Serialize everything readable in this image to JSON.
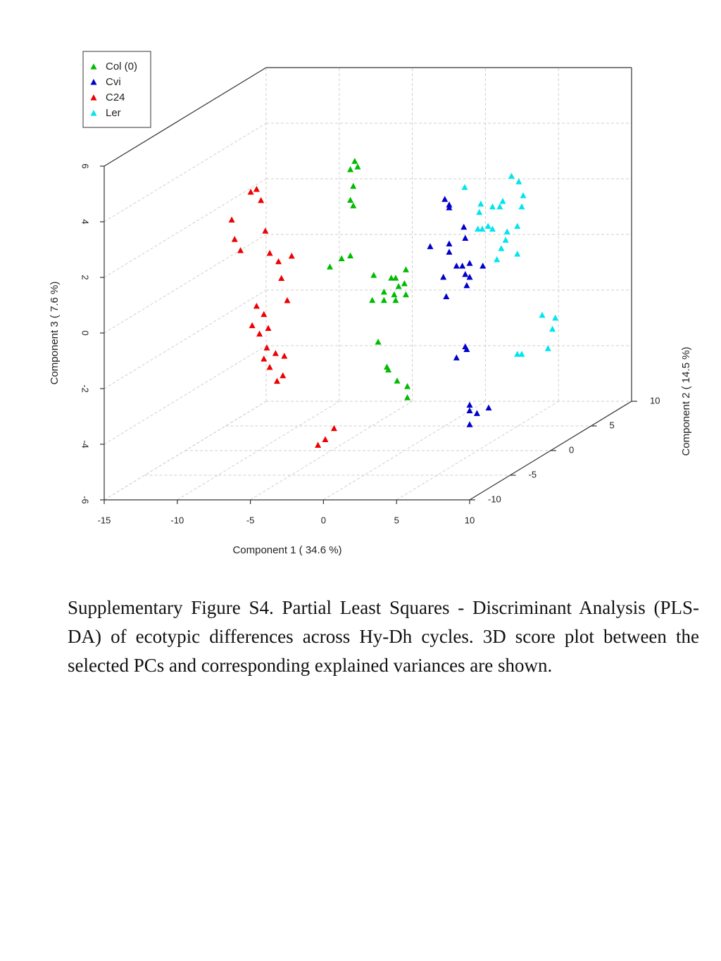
{
  "chart_data": {
    "type": "scatter3d",
    "x_label": "Component 1 ( 34.6 %)",
    "y_label": "Component 2 ( 14.5 %)",
    "z_label": "Component 3 ( 7.6 %)",
    "xlim": [
      -15,
      10
    ],
    "ylim": [
      -10,
      10
    ],
    "zlim": [
      -6,
      6
    ],
    "xticks": [
      -15,
      -10,
      -5,
      0,
      5,
      10
    ],
    "yticks": [
      -10,
      -5,
      0,
      5,
      10
    ],
    "zticks": [
      -6,
      -4,
      -2,
      0,
      2,
      4,
      6
    ],
    "grid": true,
    "legend": "top-left",
    "series": [
      {
        "name": "Col (0)",
        "color": "#00bb00",
        "x": [
          -3.4,
          -3.7,
          -3.2,
          -3.5,
          -3.7,
          -3.5,
          -5.1,
          -4.3,
          -3.7,
          -2.1,
          -0.9,
          -0.6,
          0.1,
          -1.4,
          -0.4,
          0.0,
          -2.2,
          -1.4,
          -0.7,
          -0.6,
          0.1,
          -1.8,
          -1.2,
          -1.1,
          -0.5,
          0.2,
          0.2
        ],
        "y": [
          0,
          0,
          0,
          0,
          0,
          0,
          0,
          0,
          0,
          0,
          0,
          0,
          0,
          0,
          0,
          0,
          0,
          0,
          0,
          0,
          0,
          0,
          0,
          0,
          0,
          0,
          0
        ],
        "z": [
          4.4,
          4.1,
          4.2,
          3.5,
          3.0,
          2.8,
          0.6,
          0.9,
          1.0,
          0.3,
          0.2,
          0.2,
          0.5,
          -0.3,
          -0.1,
          0.0,
          -0.6,
          -0.6,
          -0.4,
          -0.6,
          -0.4,
          -2.1,
          -3.0,
          -3.1,
          -3.5,
          -3.7,
          -4.1
        ]
      },
      {
        "name": "Cvi",
        "color": "#0000cc",
        "x": [
          1.1,
          1.4,
          1.4,
          2.4,
          0.1,
          1.4,
          1.4,
          2.5,
          1.9,
          2.3,
          2.8,
          3.7,
          1.0,
          2.5,
          2.8,
          2.6,
          1.2,
          2.5,
          2.6,
          1.9,
          2.8,
          2.8,
          3.3,
          4.1,
          2.8
        ],
        "y": [
          3,
          3,
          3,
          3,
          3,
          3,
          3,
          3,
          3,
          3,
          3,
          3,
          3,
          3,
          3,
          3,
          3,
          3,
          3,
          3,
          3,
          3,
          3,
          3,
          3
        ],
        "z": [
          2.5,
          2.3,
          2.2,
          1.5,
          0.8,
          0.9,
          0.6,
          1.1,
          0.1,
          0.1,
          0.2,
          0.1,
          -0.3,
          -0.2,
          -0.3,
          -0.6,
          -1.0,
          -2.8,
          -2.9,
          -3.2,
          -4.9,
          -5.1,
          -5.2,
          -5.0,
          -5.6
        ]
      },
      {
        "name": "C24",
        "color": "#ee0000",
        "x": [
          -8.3,
          -7.9,
          -7.6,
          -9.6,
          -9.4,
          -9.0,
          -7.3,
          -7.0,
          -6.4,
          -5.5,
          -6.2,
          -5.8,
          -7.9,
          -7.4,
          -8.2,
          -7.7,
          -7.1,
          -7.2,
          -7.4,
          -6.6,
          -6.0,
          -7.0,
          -6.5,
          -6.1,
          -2.6,
          -3.2,
          -3.7
        ],
        "y": [
          -4,
          -4,
          -4,
          -4,
          -4,
          -4,
          -4,
          -4,
          -4,
          -4,
          -4,
          -4,
          -4,
          -4,
          -4,
          -4,
          -4,
          -4,
          -4,
          -4,
          -4,
          -4,
          -4,
          -4,
          -4,
          -4,
          -4
        ],
        "z": [
          4.0,
          4.1,
          3.7,
          3.0,
          2.3,
          1.9,
          2.6,
          1.8,
          1.5,
          1.7,
          0.9,
          0.1,
          -0.1,
          -0.4,
          -0.8,
          -1.1,
          -0.9,
          -1.6,
          -2.0,
          -1.8,
          -1.9,
          -2.3,
          -2.8,
          -2.6,
          -4.5,
          -4.9,
          -5.1
        ]
      },
      {
        "name": "Ler",
        "color": "#00e5ee",
        "x": [
          4.0,
          4.5,
          4.8,
          4.7,
          3.4,
          2.7,
          3.2,
          1.9,
          1.8,
          0.8,
          2.4,
          2.7,
          1.7,
          2.0,
          4.4,
          3.7,
          3.6,
          3.3,
          3.0,
          4.4,
          6.1,
          7.0,
          6.8,
          6.5,
          4.4,
          4.7
        ],
        "y": [
          6,
          6,
          6,
          6,
          6,
          6,
          6,
          6,
          6,
          6,
          6,
          6,
          6,
          6,
          6,
          6,
          6,
          6,
          6,
          6,
          6,
          6,
          6,
          6,
          6,
          6
        ],
        "z": [
          2.8,
          2.6,
          2.1,
          1.7,
          1.9,
          1.7,
          1.7,
          1.8,
          1.5,
          2.4,
          1.0,
          0.9,
          0.9,
          0.9,
          1.0,
          0.8,
          0.5,
          0.2,
          -0.2,
          0.0,
          -2.2,
          -2.3,
          -2.7,
          -3.4,
          -3.6,
          -3.6
        ]
      }
    ]
  },
  "caption": "Supplementary Figure S4. Partial Least Squares - Discriminant Analysis (PLS-DA) of ecotypic differences across Hy-Dh cycles. 3D score plot between the selected PCs and corresponding explained variances are shown."
}
